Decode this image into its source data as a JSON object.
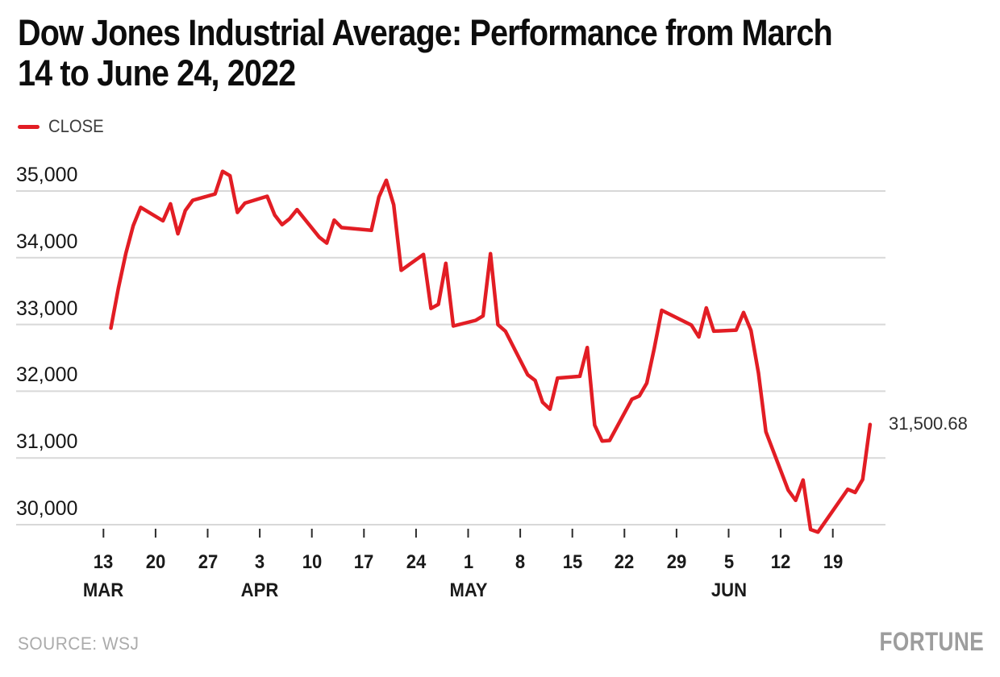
{
  "header": {
    "title_lines": [
      "Dow Jones Industrial Average: Performance from March",
      "14 to June 24, 2022"
    ]
  },
  "legend": {
    "label": "CLOSE"
  },
  "footer": {
    "source": "SOURCE: WSJ",
    "brand": "FORTUNE"
  },
  "colors": {
    "series_red": "#e21d24",
    "grid": "#d8d8d8",
    "axis_text": "#1a1a1a",
    "source_gray": "#ababab",
    "brand_gray": "#9d9d9d"
  },
  "chart_data": {
    "type": "line",
    "title": "Dow Jones Industrial Average: Performance from March 14 to June 24, 2022",
    "xlabel": "",
    "ylabel": "",
    "grid": "horizontal",
    "legend_position": "top-left",
    "x_range": [
      "2022-03-14",
      "2022-06-24"
    ],
    "ylim": [
      29700,
      35400
    ],
    "y_axis": {
      "ticks": [
        {
          "value": 35000,
          "label": "35,000"
        },
        {
          "value": 34000,
          "label": "34,000"
        },
        {
          "value": 33000,
          "label": "33,000"
        },
        {
          "value": 32000,
          "label": "32,000"
        },
        {
          "value": 31000,
          "label": "31,000"
        },
        {
          "value": 30000,
          "label": "30,000"
        }
      ]
    },
    "x_axis": {
      "ticks": [
        {
          "date": "2022-03-13",
          "label": "13",
          "month": "MAR"
        },
        {
          "date": "2022-03-20",
          "label": "20"
        },
        {
          "date": "2022-03-27",
          "label": "27"
        },
        {
          "date": "2022-04-03",
          "label": "3",
          "month": "APR"
        },
        {
          "date": "2022-04-10",
          "label": "10"
        },
        {
          "date": "2022-04-17",
          "label": "17"
        },
        {
          "date": "2022-04-24",
          "label": "24"
        },
        {
          "date": "2022-05-01",
          "label": "1",
          "month": "MAY"
        },
        {
          "date": "2022-05-08",
          "label": "8"
        },
        {
          "date": "2022-05-15",
          "label": "15"
        },
        {
          "date": "2022-05-22",
          "label": "22"
        },
        {
          "date": "2022-05-29",
          "label": "29"
        },
        {
          "date": "2022-06-05",
          "label": "5",
          "month": "JUN"
        },
        {
          "date": "2022-06-12",
          "label": "12"
        },
        {
          "date": "2022-06-19",
          "label": "19"
        }
      ]
    },
    "series": [
      {
        "name": "CLOSE",
        "color": "#e21d24",
        "points": [
          [
            "2022-03-14",
            32945.24
          ],
          [
            "2022-03-15",
            33544.34
          ],
          [
            "2022-03-16",
            34063.1
          ],
          [
            "2022-03-17",
            34480.76
          ],
          [
            "2022-03-18",
            34754.93
          ],
          [
            "2022-03-21",
            34552.99
          ],
          [
            "2022-03-22",
            34807.46
          ],
          [
            "2022-03-23",
            34358.5
          ],
          [
            "2022-03-24",
            34707.94
          ],
          [
            "2022-03-25",
            34861.24
          ],
          [
            "2022-03-28",
            34955.89
          ],
          [
            "2022-03-29",
            35294.19
          ],
          [
            "2022-03-30",
            35228.81
          ],
          [
            "2022-03-31",
            34678.35
          ],
          [
            "2022-04-01",
            34818.27
          ],
          [
            "2022-04-04",
            34921.88
          ],
          [
            "2022-04-05",
            34641.18
          ],
          [
            "2022-04-06",
            34496.51
          ],
          [
            "2022-04-07",
            34583.57
          ],
          [
            "2022-04-08",
            34721.12
          ],
          [
            "2022-04-11",
            34308.08
          ],
          [
            "2022-04-12",
            34220.36
          ],
          [
            "2022-04-13",
            34564.59
          ],
          [
            "2022-04-14",
            34451.23
          ],
          [
            "2022-04-18",
            34411.69
          ],
          [
            "2022-04-19",
            34911.2
          ],
          [
            "2022-04-20",
            35160.79
          ],
          [
            "2022-04-21",
            34792.76
          ],
          [
            "2022-04-22",
            33811.4
          ],
          [
            "2022-04-25",
            34049.46
          ],
          [
            "2022-04-26",
            33240.18
          ],
          [
            "2022-04-27",
            33301.93
          ],
          [
            "2022-04-28",
            33916.39
          ],
          [
            "2022-04-29",
            32977.21
          ],
          [
            "2022-05-02",
            33061.5
          ],
          [
            "2022-05-03",
            33128.79
          ],
          [
            "2022-05-04",
            34061.06
          ],
          [
            "2022-05-05",
            32997.97
          ],
          [
            "2022-05-06",
            32899.37
          ],
          [
            "2022-05-09",
            32245.7
          ],
          [
            "2022-05-10",
            32160.74
          ],
          [
            "2022-05-11",
            31834.11
          ],
          [
            "2022-05-12",
            31730.3
          ],
          [
            "2022-05-13",
            32196.66
          ],
          [
            "2022-05-16",
            32223.42
          ],
          [
            "2022-05-17",
            32654.59
          ],
          [
            "2022-05-18",
            31490.07
          ],
          [
            "2022-05-19",
            31253.13
          ],
          [
            "2022-05-20",
            31261.9
          ],
          [
            "2022-05-23",
            31880.24
          ],
          [
            "2022-05-24",
            31928.62
          ],
          [
            "2022-05-25",
            32120.28
          ],
          [
            "2022-05-26",
            32637.19
          ],
          [
            "2022-05-27",
            33212.96
          ],
          [
            "2022-05-31",
            32990.12
          ],
          [
            "2022-06-01",
            32813.23
          ],
          [
            "2022-06-02",
            33248.28
          ],
          [
            "2022-06-03",
            32899.7
          ],
          [
            "2022-06-06",
            32915.78
          ],
          [
            "2022-06-07",
            33180.14
          ],
          [
            "2022-06-08",
            32910.9
          ],
          [
            "2022-06-09",
            32272.79
          ],
          [
            "2022-06-10",
            31392.79
          ],
          [
            "2022-06-13",
            30516.74
          ],
          [
            "2022-06-14",
            30364.83
          ],
          [
            "2022-06-15",
            30668.53
          ],
          [
            "2022-06-16",
            29927.07
          ],
          [
            "2022-06-17",
            29888.78
          ],
          [
            "2022-06-21",
            30530.25
          ],
          [
            "2022-06-22",
            30483.13
          ],
          [
            "2022-06-23",
            30677.36
          ],
          [
            "2022-06-24",
            31500.68
          ]
        ]
      }
    ],
    "annotation": {
      "date": "2022-06-24",
      "value": 31500.68,
      "label": "31,500.68"
    }
  }
}
